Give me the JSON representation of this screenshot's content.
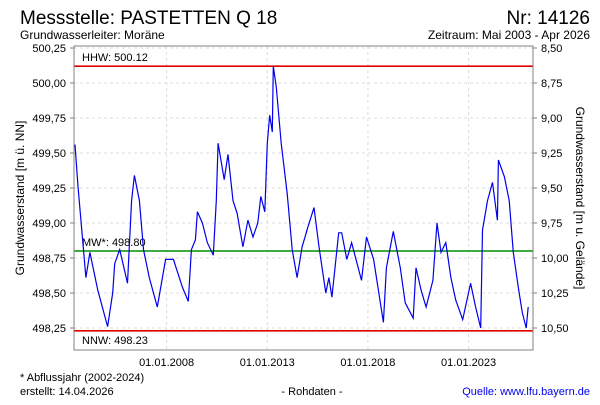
{
  "header": {
    "title": "Messstelle: PASTETTEN Q 18",
    "number": "Nr: 14126",
    "aquifer": "Grundwasserleiter:   Moräne",
    "period": "Zeitraum: Mai 2003 - Apr 2026"
  },
  "footer": {
    "note": "* Abflussjahr (2002-2024)",
    "created": "erstellt:  14.04.2026",
    "datatype": "- Rohdaten -",
    "source": "Quelle: www.lfu.bayern.de"
  },
  "colors": {
    "series": "#0000ee",
    "hhw": "#e00000",
    "nnw": "#e00000",
    "mw": "#009000",
    "source_link": "#0000ee"
  },
  "chart_data": {
    "type": "line",
    "ylabel": "Grundwasserstand [m ü. NN]",
    "y2label": "Grundwasserstand [m u. Gelände]",
    "ylim": [
      498.09,
      500.25
    ],
    "xlim": [
      2003.4,
      2026.2
    ],
    "y_ticks": [
      "500,25",
      "500,00",
      "499,75",
      "499,50",
      "499,25",
      "499,00",
      "498,75",
      "498,50",
      "498,25"
    ],
    "y_tick_values": [
      500.25,
      500.0,
      499.75,
      499.5,
      499.25,
      499.0,
      498.75,
      498.5,
      498.25
    ],
    "y2_ticks": [
      "8,50",
      "8,75",
      "9,00",
      "9,25",
      "9,50",
      "9,75",
      "10,00",
      "10,25",
      "10,50"
    ],
    "x_ticks": [
      "01.01.2008",
      "01.01.2013",
      "01.01.2018",
      "01.01.2023"
    ],
    "x_tick_values": [
      2008.0,
      2013.0,
      2018.0,
      2023.0
    ],
    "reference_lines": [
      {
        "label": "HHW: 500.12",
        "value": 500.12,
        "color": "#e00000"
      },
      {
        "label": "MW*: 498.80",
        "value": 498.8,
        "color": "#009000"
      },
      {
        "label": "NNW: 498.23",
        "value": 498.23,
        "color": "#e00000"
      }
    ],
    "series": [
      {
        "name": "Grundwasserstand",
        "points": [
          [
            2003.45,
            499.56
          ],
          [
            2003.6,
            499.26
          ],
          [
            2003.79,
            498.94
          ],
          [
            2003.99,
            498.61
          ],
          [
            2004.19,
            498.79
          ],
          [
            2004.58,
            498.52
          ],
          [
            2005.07,
            498.26
          ],
          [
            2005.32,
            498.5
          ],
          [
            2005.42,
            498.71
          ],
          [
            2005.67,
            498.81
          ],
          [
            2006.06,
            498.57
          ],
          [
            2006.26,
            499.16
          ],
          [
            2006.4,
            499.34
          ],
          [
            2006.65,
            499.16
          ],
          [
            2006.85,
            498.81
          ],
          [
            2007.14,
            498.61
          ],
          [
            2007.54,
            498.4
          ],
          [
            2007.95,
            498.74
          ],
          [
            2008.34,
            498.74
          ],
          [
            2008.79,
            498.54
          ],
          [
            2009.08,
            498.44
          ],
          [
            2009.23,
            498.81
          ],
          [
            2009.43,
            498.88
          ],
          [
            2009.53,
            499.08
          ],
          [
            2009.78,
            499.0
          ],
          [
            2010.02,
            498.86
          ],
          [
            2010.32,
            498.77
          ],
          [
            2010.47,
            499.16
          ],
          [
            2010.56,
            499.57
          ],
          [
            2010.86,
            499.31
          ],
          [
            2011.05,
            499.49
          ],
          [
            2011.3,
            499.16
          ],
          [
            2011.5,
            499.07
          ],
          [
            2011.79,
            498.83
          ],
          [
            2012.04,
            499.02
          ],
          [
            2012.29,
            498.9
          ],
          [
            2012.53,
            499.0
          ],
          [
            2012.68,
            499.19
          ],
          [
            2012.88,
            499.08
          ],
          [
            2013.0,
            499.57
          ],
          [
            2013.12,
            499.77
          ],
          [
            2013.25,
            499.65
          ],
          [
            2013.3,
            500.12
          ],
          [
            2013.45,
            499.97
          ],
          [
            2013.69,
            499.57
          ],
          [
            2013.99,
            499.21
          ],
          [
            2014.24,
            498.81
          ],
          [
            2014.48,
            498.61
          ],
          [
            2014.73,
            498.83
          ],
          [
            2014.98,
            498.95
          ],
          [
            2014.93,
            498.93
          ],
          [
            2015.32,
            499.11
          ],
          [
            2015.57,
            498.83
          ],
          [
            2015.91,
            498.5
          ],
          [
            2016.06,
            498.61
          ],
          [
            2016.21,
            498.47
          ],
          [
            2016.55,
            498.93
          ],
          [
            2016.7,
            498.93
          ],
          [
            2016.95,
            498.74
          ],
          [
            2017.19,
            498.86
          ],
          [
            2017.68,
            498.59
          ],
          [
            2017.93,
            498.9
          ],
          [
            2018.28,
            498.74
          ],
          [
            2018.77,
            498.29
          ],
          [
            2018.92,
            498.68
          ],
          [
            2019.26,
            498.94
          ],
          [
            2019.61,
            498.68
          ],
          [
            2019.85,
            498.43
          ],
          [
            2020.25,
            498.32
          ],
          [
            2020.39,
            498.68
          ],
          [
            2020.64,
            498.52
          ],
          [
            2020.89,
            498.4
          ],
          [
            2021.23,
            498.59
          ],
          [
            2021.43,
            499.0
          ],
          [
            2021.63,
            498.79
          ],
          [
            2021.87,
            498.86
          ],
          [
            2022.12,
            498.61
          ],
          [
            2022.36,
            498.45
          ],
          [
            2022.71,
            498.31
          ],
          [
            2023.1,
            498.57
          ],
          [
            2023.35,
            498.4
          ],
          [
            2023.6,
            498.25
          ],
          [
            2023.69,
            498.95
          ],
          [
            2023.94,
            499.16
          ],
          [
            2024.19,
            499.29
          ],
          [
            2024.43,
            499.02
          ],
          [
            2024.48,
            499.45
          ],
          [
            2024.78,
            499.33
          ],
          [
            2025.02,
            499.16
          ],
          [
            2025.22,
            498.79
          ],
          [
            2025.47,
            498.54
          ],
          [
            2025.67,
            498.36
          ],
          [
            2025.86,
            498.25
          ],
          [
            2025.96,
            498.4
          ]
        ]
      }
    ]
  }
}
